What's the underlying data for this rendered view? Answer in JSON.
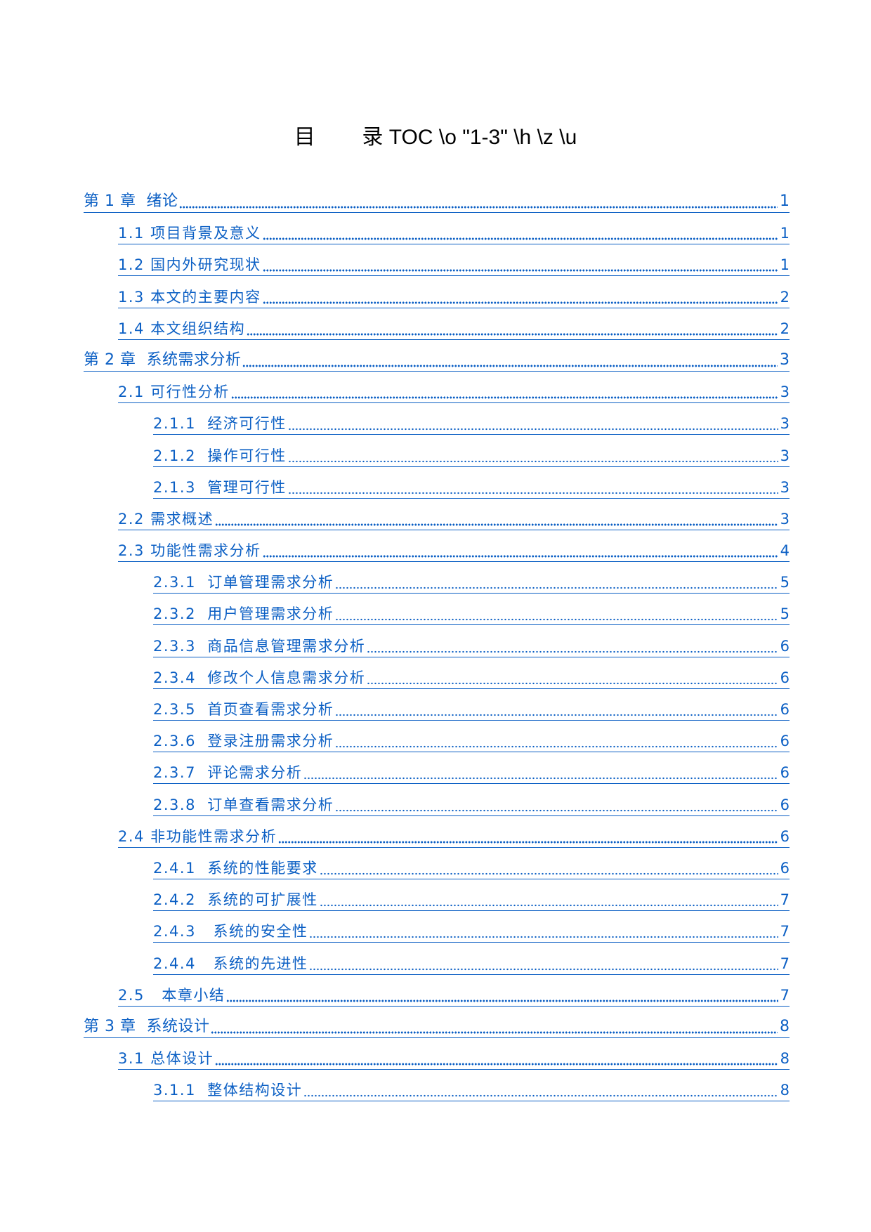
{
  "title": "目        录 TOC \\o \"1-3\" \\h \\z \\u",
  "colors": {
    "link": "#0b5fc4",
    "title": "#000000",
    "background": "#ffffff"
  },
  "entries": [
    {
      "level": 1,
      "label": "第 1 章  绪论",
      "page": "1"
    },
    {
      "level": 2,
      "label": "1.1 项目背景及意义",
      "page": "1"
    },
    {
      "level": 2,
      "label": "1.2 国内外研究现状",
      "page": "1"
    },
    {
      "level": 2,
      "label": "1.3 本文的主要内容",
      "page": "2"
    },
    {
      "level": 2,
      "label": "1.4 本文组织结构",
      "page": "2"
    },
    {
      "level": 1,
      "label": "第 2 章  系统需求分析",
      "page": "3"
    },
    {
      "level": 2,
      "label": "2.1 可行性分析",
      "page": "3"
    },
    {
      "level": 3,
      "label": "2.1.1  经济可行性",
      "page": "3"
    },
    {
      "level": 3,
      "label": "2.1.2  操作可行性",
      "page": "3"
    },
    {
      "level": 3,
      "label": "2.1.3  管理可行性",
      "page": "3"
    },
    {
      "level": 2,
      "label": "2.2 需求概述",
      "page": "3"
    },
    {
      "level": 2,
      "label": "2.3 功能性需求分析",
      "page": "4"
    },
    {
      "level": 3,
      "label": "2.3.1  订单管理需求分析",
      "page": "5"
    },
    {
      "level": 3,
      "label": "2.3.2  用户管理需求分析",
      "page": "5"
    },
    {
      "level": 3,
      "label": "2.3.3  商品信息管理需求分析",
      "page": "6"
    },
    {
      "level": 3,
      "label": "2.3.4  修改个人信息需求分析",
      "page": "6"
    },
    {
      "level": 3,
      "label": "2.3.5  首页查看需求分析",
      "page": "6"
    },
    {
      "level": 3,
      "label": "2.3.6  登录注册需求分析",
      "page": "6"
    },
    {
      "level": 3,
      "label": "2.3.7  评论需求分析",
      "page": "6"
    },
    {
      "level": 3,
      "label": "2.3.8  订单查看需求分析",
      "page": "6"
    },
    {
      "level": 2,
      "label": "2.4 非功能性需求分析",
      "page": "6"
    },
    {
      "level": 3,
      "label": "2.4.1  系统的性能要求",
      "page": "6"
    },
    {
      "level": 3,
      "label": "2.4.2  系统的可扩展性",
      "page": "7"
    },
    {
      "level": 3,
      "label": "2.4.3   系统的安全性",
      "page": "7"
    },
    {
      "level": 3,
      "label": "2.4.4   系统的先进性",
      "page": "7"
    },
    {
      "level": 2,
      "label": "2.5   本章小结",
      "page": "7"
    },
    {
      "level": 1,
      "label": "第 3 章  系统设计",
      "page": "8"
    },
    {
      "level": 2,
      "label": "3.1 总体设计",
      "page": "8"
    },
    {
      "level": 3,
      "label": "3.1.1  整体结构设计",
      "page": "8"
    }
  ]
}
